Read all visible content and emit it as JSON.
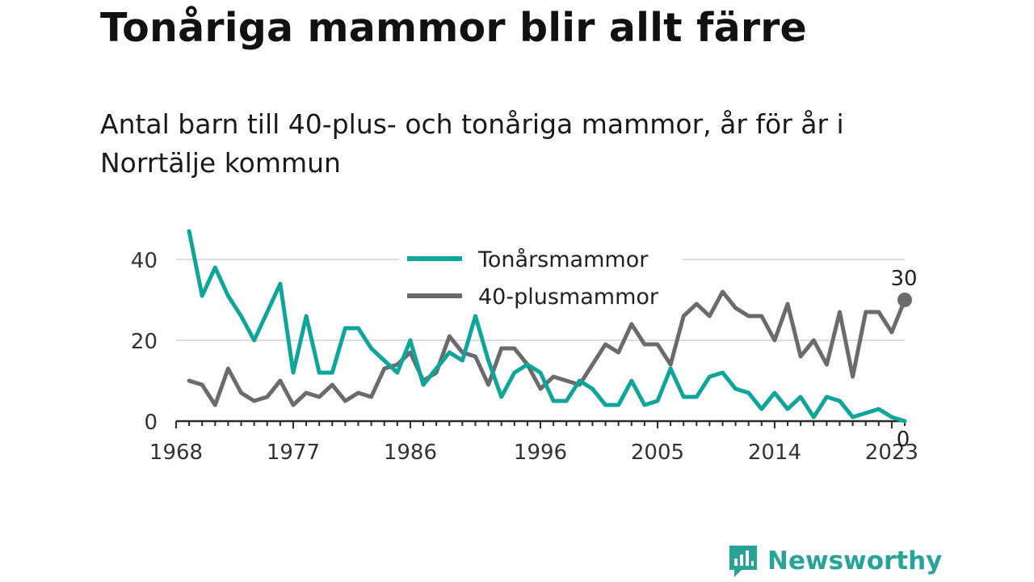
{
  "title": "Tonåriga mammor blir allt färre",
  "subtitle": "Antal barn till 40-plus- och tonåriga mammor, år för år i Norrtälje kommun",
  "brand": "Newsworthy",
  "colors": {
    "teen": "#0ea59a",
    "forty": "#6b6a6f",
    "grid": "#dedede",
    "axis": "#2b2b2b",
    "brand": "#27a398"
  },
  "chart_data": {
    "type": "line",
    "xlim": [
      1968,
      2024
    ],
    "ylim": [
      0,
      47
    ],
    "x_ticks": [
      1968,
      1977,
      1986,
      1996,
      2005,
      2014,
      2023
    ],
    "y_ticks": [
      0,
      20,
      40
    ],
    "grid": "horizontal",
    "legend_position": "top-center",
    "x": [
      1969,
      1970,
      1971,
      1972,
      1973,
      1974,
      1975,
      1976,
      1977,
      1978,
      1979,
      1980,
      1981,
      1982,
      1983,
      1984,
      1985,
      1986,
      1987,
      1988,
      1989,
      1990,
      1991,
      1992,
      1993,
      1994,
      1995,
      1996,
      1997,
      1998,
      1999,
      2000,
      2001,
      2002,
      2003,
      2004,
      2005,
      2006,
      2007,
      2008,
      2009,
      2010,
      2011,
      2012,
      2013,
      2014,
      2015,
      2016,
      2017,
      2018,
      2019,
      2020,
      2021,
      2022,
      2023,
      2024
    ],
    "series": [
      {
        "name": "Tonårsmammor",
        "values": [
          47,
          31,
          38,
          31,
          26,
          20,
          27,
          34,
          12,
          26,
          12,
          12,
          23,
          23,
          18,
          15,
          12,
          20,
          9,
          13,
          17,
          15,
          26,
          15,
          6,
          12,
          14,
          12,
          5,
          5,
          10,
          8,
          4,
          4,
          10,
          4,
          5,
          13,
          6,
          6,
          11,
          12,
          8,
          7,
          3,
          7,
          3,
          6,
          1,
          6,
          5,
          1,
          2,
          3,
          1,
          0
        ],
        "end_label": "0"
      },
      {
        "name": "40-plusmammor",
        "values": [
          10,
          9,
          4,
          13,
          7,
          5,
          6,
          10,
          4,
          7,
          6,
          9,
          5,
          7,
          6,
          13,
          14,
          17,
          10,
          12,
          21,
          17,
          16,
          9,
          18,
          18,
          14,
          8,
          11,
          10,
          9,
          14,
          19,
          17,
          24,
          19,
          19,
          14,
          26,
          29,
          26,
          32,
          28,
          26,
          26,
          20,
          29,
          16,
          20,
          14,
          27,
          11,
          27,
          27,
          22,
          30
        ],
        "end_label": "30"
      }
    ]
  }
}
